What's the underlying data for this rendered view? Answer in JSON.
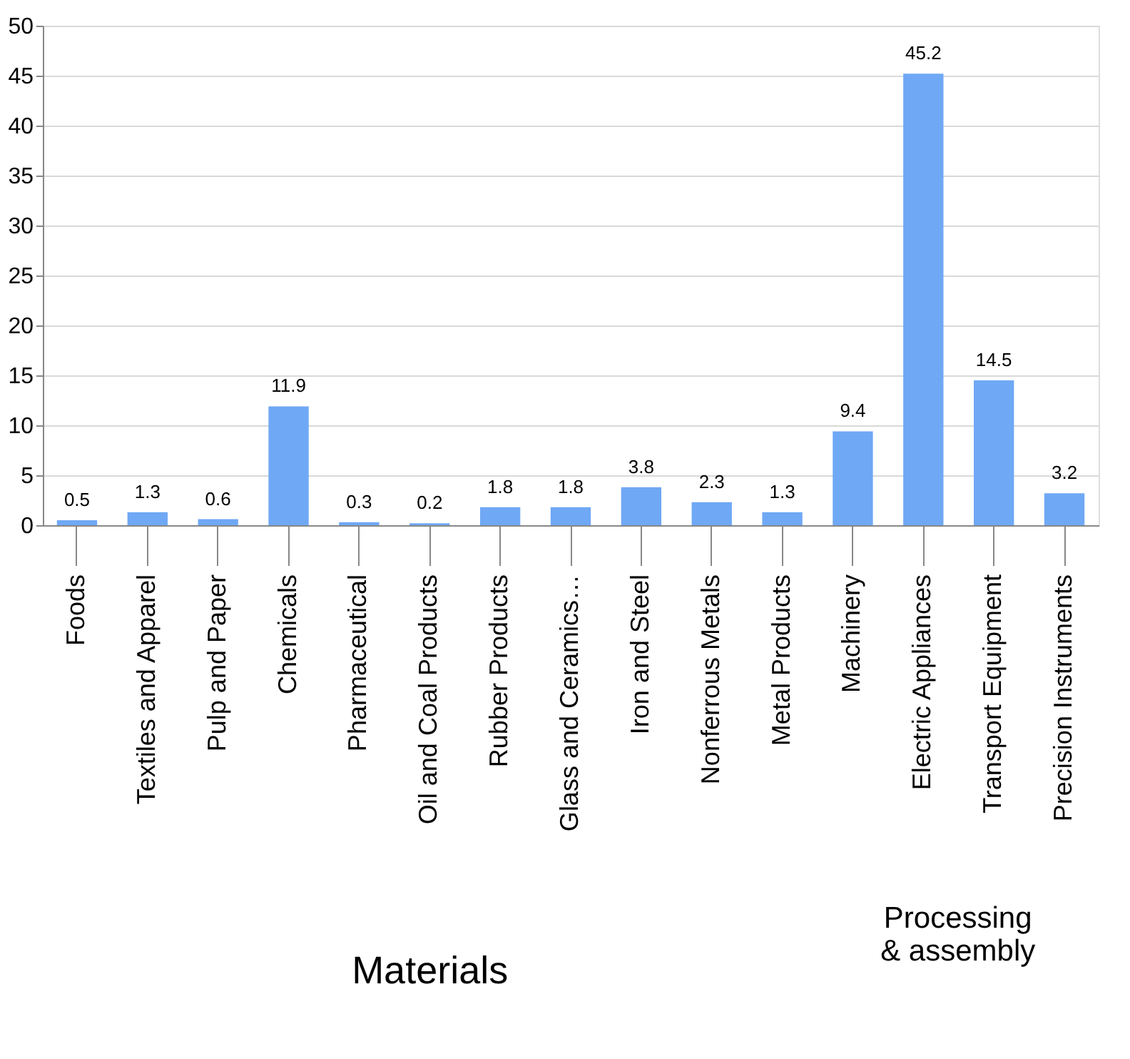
{
  "chart_data": {
    "type": "bar",
    "categories": [
      "Foods",
      "Textiles and Apparel",
      "Pulp and Paper",
      "Chemicals",
      "Pharmaceutical",
      "Oil and Coal Products",
      "Rubber Products",
      "Glass and Ceramics…",
      "Iron and Steel",
      "Nonferrous Metals",
      "Metal Products",
      "Machinery",
      "Electric Appliances",
      "Transport Equipment",
      "Precision Instruments"
    ],
    "values": [
      0.5,
      1.3,
      0.6,
      11.9,
      0.3,
      0.2,
      1.8,
      1.8,
      3.8,
      2.3,
      1.3,
      9.4,
      45.2,
      14.5,
      3.2
    ],
    "color": "#6fa8f5",
    "ylim": [
      0,
      50
    ],
    "yticks": [
      0,
      5,
      10,
      15,
      20,
      25,
      30,
      35,
      40,
      45,
      50
    ],
    "grid": "y",
    "data_labels": true,
    "annotations": [
      "Materials",
      "Processing\n& assembly"
    ]
  }
}
